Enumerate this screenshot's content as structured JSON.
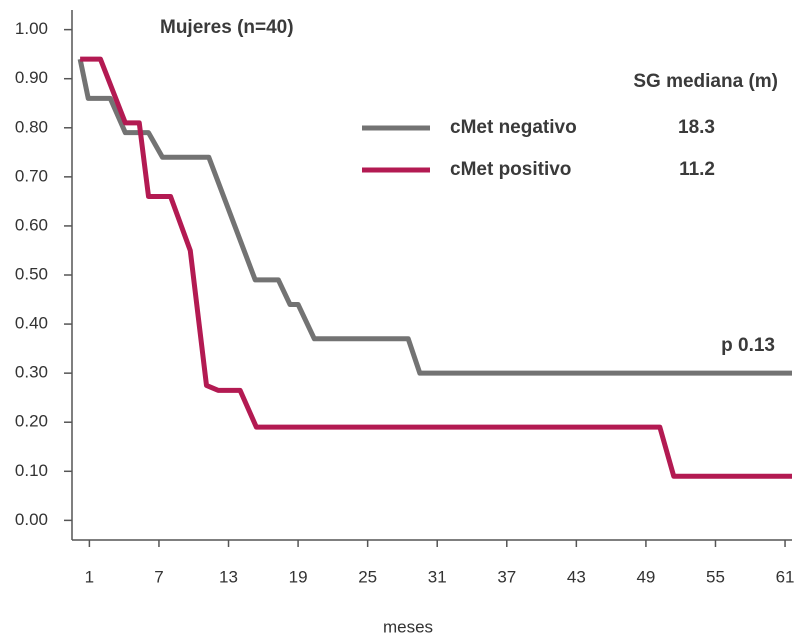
{
  "chart_data": {
    "type": "line",
    "title": "Mujeres (n=40)",
    "legend_title": "SG mediana (m)",
    "annotation": "p 0.13",
    "x_label": "meses",
    "xlim": [
      -0.5,
      61.6
    ],
    "ylim": [
      -0.04,
      1.04
    ],
    "xticks": [
      1,
      7,
      13,
      19,
      25,
      31,
      37,
      43,
      49,
      55,
      61
    ],
    "yticks": [
      {
        "value": 0,
        "label": "0.00"
      },
      {
        "value": 0.1,
        "label": "0.10"
      },
      {
        "value": 0.2,
        "label": "0.20"
      },
      {
        "value": 0.3,
        "label": "0.30"
      },
      {
        "value": 0.4,
        "label": "0.40"
      },
      {
        "value": 0.5,
        "label": "0.50"
      },
      {
        "value": 0.6,
        "label": "0.60"
      },
      {
        "value": 0.7,
        "label": "0.70"
      },
      {
        "value": 0.8,
        "label": "0.80"
      },
      {
        "value": 0.9,
        "label": "0.90"
      },
      {
        "value": 1,
        "label": "1.00"
      }
    ],
    "series": [
      {
        "name": "cMet negativo",
        "median": 18.3,
        "color": "#737373",
        "x": [
          0.2,
          0.9,
          2.8,
          4.1,
          6.1,
          7.3,
          11.3,
          15.3,
          17.3,
          18.3,
          19,
          20.4,
          28.5,
          29.5,
          61.6
        ],
        "values": [
          0.94,
          0.86,
          0.86,
          0.79,
          0.79,
          0.74,
          0.74,
          0.49,
          0.49,
          0.44,
          0.44,
          0.37,
          0.37,
          0.3,
          0.3
        ]
      },
      {
        "name": "cMet positivo",
        "median": 11.2,
        "color": "#b31a52",
        "x": [
          0.2,
          1.95,
          4.1,
          5.3,
          6.1,
          8.0,
          9.7,
          11.1,
          12.1,
          14.0,
          15.4,
          50.2,
          51.4,
          61.6
        ],
        "values": [
          0.94,
          0.94,
          0.81,
          0.81,
          0.66,
          0.66,
          0.55,
          0.275,
          0.265,
          0.265,
          0.19,
          0.19,
          0.09,
          0.09
        ]
      }
    ]
  }
}
